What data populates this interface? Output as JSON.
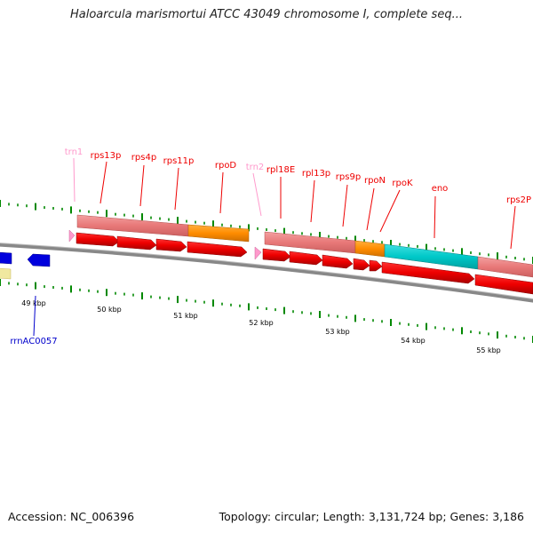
{
  "title": "Haloarcula marismortui ATCC 43049 chromosome I, complete seq...",
  "footer": {
    "accession": "Accession: NC_006396",
    "topology": "Topology: circular; Length: 3,131,724 bp; Genes: 3,186"
  },
  "colors": {
    "gene_red": "#ee0000",
    "cds_pink": "#ee8080",
    "cds_orange": "#ff8c00",
    "cds_cyan": "#00cccc",
    "trna_pink": "#ff99cc",
    "rrna_blue": "#0000cc",
    "tick_green": "#008800",
    "backbone": "#888888"
  },
  "ticks": [
    "49 kbp",
    "50 kbp",
    "51 kbp",
    "52 kbp",
    "53 kbp",
    "54 kbp",
    "55 kbp"
  ],
  "gene_labels": [
    {
      "text": "trn1",
      "type": "trna"
    },
    {
      "text": "rps13p",
      "type": "gene"
    },
    {
      "text": "rps4p",
      "type": "gene"
    },
    {
      "text": "rps11p",
      "type": "gene"
    },
    {
      "text": "rpoD",
      "type": "gene"
    },
    {
      "text": "trn2",
      "type": "trna"
    },
    {
      "text": "rpl18E",
      "type": "gene"
    },
    {
      "text": "rpl13p",
      "type": "gene"
    },
    {
      "text": "rps9p",
      "type": "gene"
    },
    {
      "text": "rpoN",
      "type": "gene"
    },
    {
      "text": "rpoK",
      "type": "gene"
    },
    {
      "text": "eno",
      "type": "gene"
    },
    {
      "text": "rps2P",
      "type": "gene"
    }
  ],
  "lower_labels": [
    {
      "text": "rrnAC0057",
      "type": "rrna"
    }
  ]
}
